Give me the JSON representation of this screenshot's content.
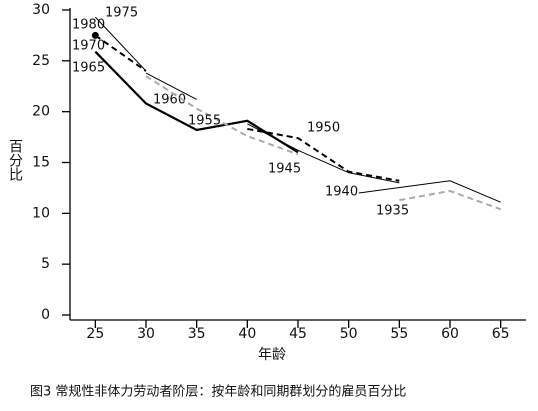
{
  "chart_data": {
    "type": "line",
    "caption": "图3 常规性非体力劳动者阶层：按年龄和同期群划分的雇员百分比",
    "x_label": "年龄",
    "y_label": "百分比",
    "xlim": [
      22.5,
      67.5
    ],
    "xticks": [
      25,
      30,
      35,
      40,
      45,
      50,
      55,
      60,
      65
    ],
    "ylim": [
      0,
      30
    ],
    "yticks": [
      0,
      5,
      10,
      15,
      20,
      25,
      30
    ],
    "series": [
      {
        "name": "1980",
        "style": "marker",
        "color": "#000000",
        "x": [
          25
        ],
        "values": [
          27.5
        ]
      },
      {
        "name": "1975",
        "style": "thin",
        "color": "#000000",
        "x": [
          25,
          30
        ],
        "values": [
          29.3,
          24.0
        ]
      },
      {
        "name": "1970",
        "style": "dashed",
        "color": "#000000",
        "x": [
          25,
          30
        ],
        "values": [
          27.5,
          24.0
        ]
      },
      {
        "name": "1965",
        "style": "thick",
        "color": "#000000",
        "x": [
          25,
          30,
          35,
          40,
          45
        ],
        "values": [
          25.9,
          20.8,
          18.2,
          19.1,
          16.0
        ]
      },
      {
        "name": "1960",
        "style": "thin",
        "color": "#000000",
        "x": [
          30,
          35
        ],
        "values": [
          23.8,
          21.2
        ]
      },
      {
        "name": "1955",
        "style": "dashed",
        "color": "#aaaaaa",
        "x": [
          30,
          35,
          40,
          45
        ],
        "values": [
          23.5,
          20.3,
          17.6,
          15.8
        ]
      },
      {
        "name": "1950",
        "style": "dashed",
        "color": "#000000",
        "x": [
          40,
          45,
          50,
          55
        ],
        "values": [
          18.3,
          17.4,
          14.1,
          13.2
        ]
      },
      {
        "name": "1945",
        "style": "thin",
        "color": "#000000",
        "x": [
          40,
          45,
          50,
          55
        ],
        "values": [
          18.8,
          16.2,
          14.0,
          13.0
        ]
      },
      {
        "name": "1940",
        "style": "thin",
        "color": "#000000",
        "x": [
          51,
          60,
          65
        ],
        "values": [
          12.0,
          13.2,
          11.1
        ]
      },
      {
        "name": "1935",
        "style": "dashed",
        "color": "#aaaaaa",
        "x": [
          55,
          60,
          65
        ],
        "values": [
          11.3,
          12.2,
          10.4
        ]
      }
    ]
  }
}
